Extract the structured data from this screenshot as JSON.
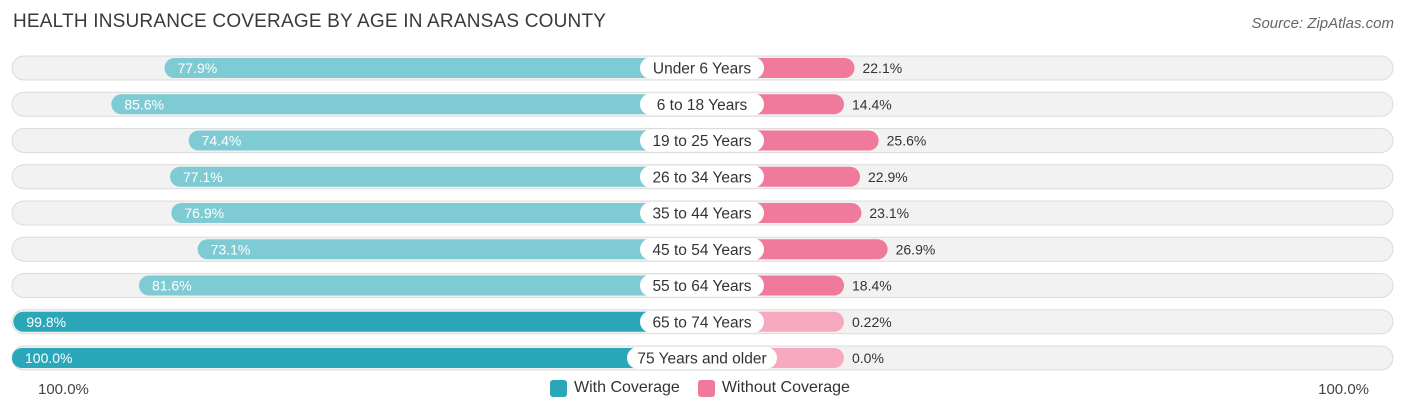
{
  "title": "HEALTH INSURANCE COVERAGE BY AGE IN ARANSAS COUNTY",
  "source": "Source: ZipAtlas.com",
  "axis": {
    "left_label": "100.0%",
    "right_label": "100.0%"
  },
  "legend": {
    "with_label": "With Coverage",
    "without_label": "Without Coverage"
  },
  "colors": {
    "with_light": "#7fcbd4",
    "with_dark": "#2aa8ba",
    "without_strong": "#f07a9c",
    "without_light": "#f7a9c0"
  },
  "chart_data": {
    "type": "bar",
    "orientation": "horizontal-diverging",
    "title": "HEALTH INSURANCE COVERAGE BY AGE IN ARANSAS COUNTY",
    "xlim": [
      -100,
      100
    ],
    "legend_position": "bottom-center",
    "categories": [
      "Under 6 Years",
      "6 to 18 Years",
      "19 to 25 Years",
      "26 to 34 Years",
      "35 to 44 Years",
      "45 to 54 Years",
      "55 to 64 Years",
      "65 to 74 Years",
      "75 Years and older"
    ],
    "series": [
      {
        "name": "With Coverage",
        "values": [
          77.9,
          85.6,
          74.4,
          77.1,
          76.9,
          73.1,
          81.6,
          99.8,
          100.0
        ],
        "labels": [
          "77.9%",
          "85.6%",
          "74.4%",
          "77.1%",
          "76.9%",
          "73.1%",
          "81.6%",
          "99.8%",
          "100.0%"
        ]
      },
      {
        "name": "Without Coverage",
        "values": [
          22.1,
          14.4,
          25.6,
          22.9,
          23.1,
          26.9,
          18.4,
          0.22,
          0.0
        ],
        "labels": [
          "22.1%",
          "14.4%",
          "25.6%",
          "22.9%",
          "23.1%",
          "26.9%",
          "18.4%",
          "0.22%",
          "0.0%"
        ]
      }
    ]
  }
}
